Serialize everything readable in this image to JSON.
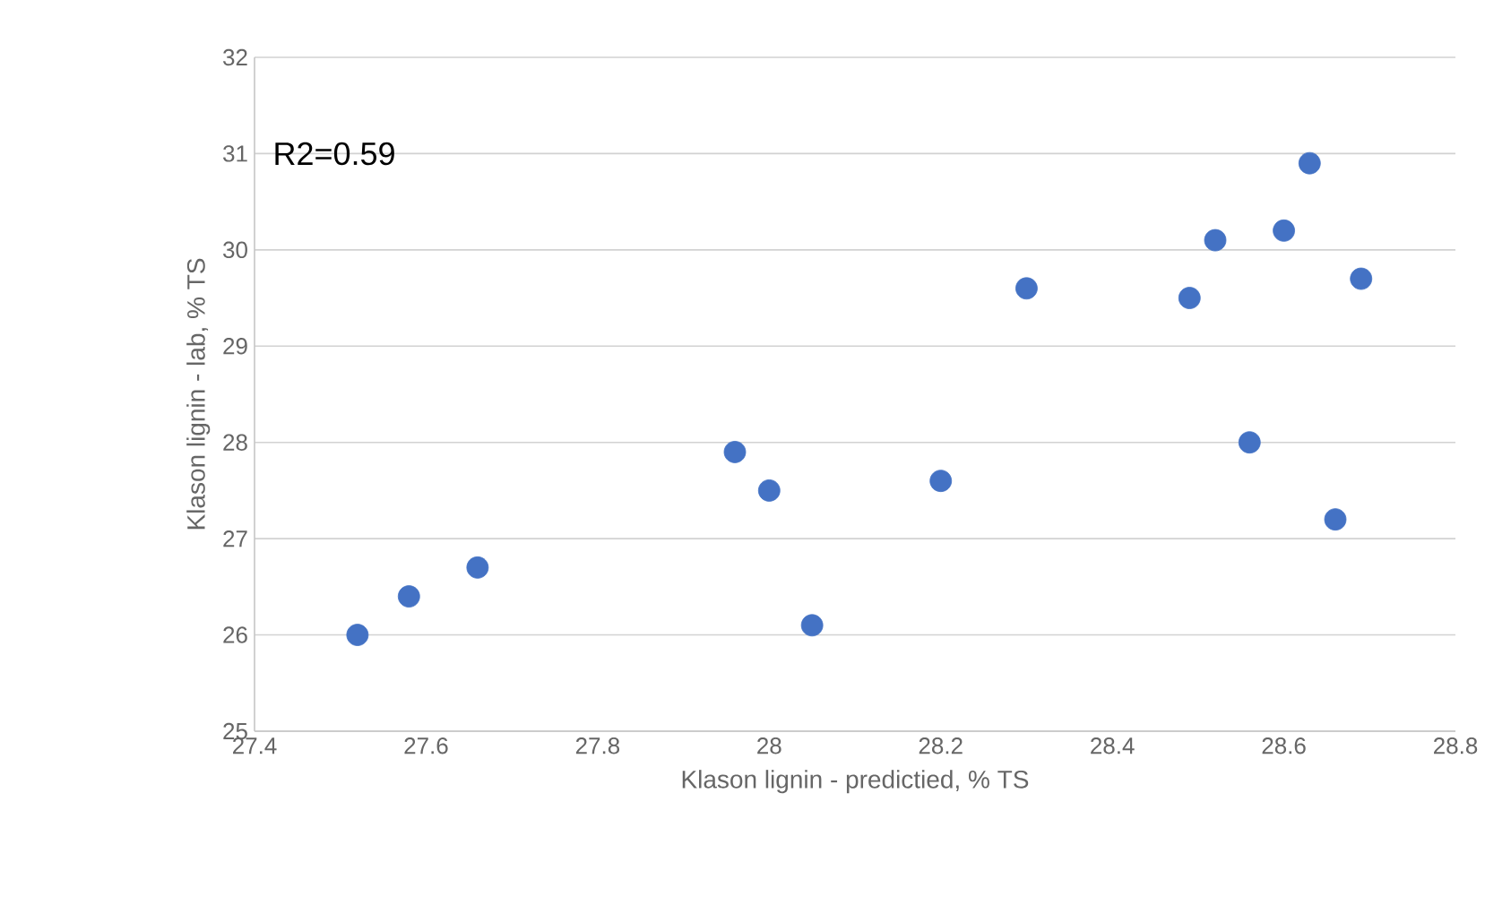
{
  "chart_data": {
    "type": "scatter",
    "xlabel": "Klason lignin - predictied, % TS",
    "ylabel": "Klason lignin - lab, % TS",
    "annotations": [
      "R2=0.59"
    ],
    "x": [
      27.52,
      27.58,
      27.66,
      27.96,
      28.0,
      28.05,
      28.2,
      28.3,
      28.49,
      28.52,
      28.56,
      28.6,
      28.63,
      28.66,
      28.69
    ],
    "values": [
      26.0,
      26.4,
      26.7,
      27.9,
      27.5,
      26.1,
      27.6,
      29.6,
      29.5,
      30.1,
      28.0,
      30.2,
      30.9,
      27.2,
      29.7
    ],
    "color": "#4472c4",
    "marker": "circle",
    "grid": "y",
    "xlim": [
      27.4,
      28.8
    ],
    "xticks": [
      27.4,
      27.6,
      27.8,
      28,
      28.2,
      28.4,
      28.6,
      28.8
    ],
    "ylim": [
      25,
      32
    ],
    "yticks": [
      25,
      26,
      27,
      28,
      29,
      30,
      31,
      32
    ]
  }
}
